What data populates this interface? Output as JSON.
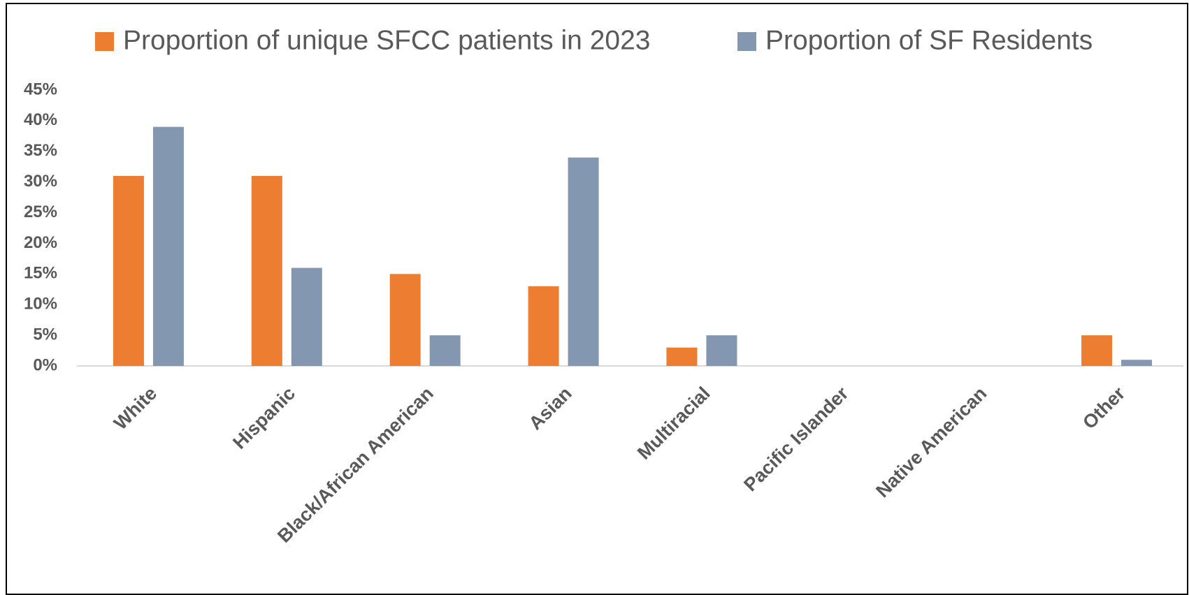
{
  "chart_data": {
    "type": "bar",
    "categories": [
      "White",
      "Hispanic",
      "Black/African American",
      "Asian",
      "Multiracial",
      "Pacific Islander",
      "Native American",
      "Other"
    ],
    "series": [
      {
        "name": "Proportion of unique SFCC patients in 2023",
        "color": "#ED7D31",
        "values": [
          31,
          31,
          15,
          13,
          3,
          0,
          0,
          5
        ]
      },
      {
        "name": "Proportion of SF Residents",
        "color": "#8497B0",
        "values": [
          39,
          16,
          5,
          34,
          5,
          0,
          0,
          1
        ]
      }
    ],
    "ylim": [
      0,
      45
    ],
    "yticks": [
      {
        "value": 0,
        "label": "0%"
      },
      {
        "value": 5,
        "label": "5%"
      },
      {
        "value": 10,
        "label": "10%"
      },
      {
        "value": 15,
        "label": "15%"
      },
      {
        "value": 20,
        "label": "20%"
      },
      {
        "value": 25,
        "label": "25%"
      },
      {
        "value": 30,
        "label": "30%"
      },
      {
        "value": 35,
        "label": "35%"
      },
      {
        "value": 40,
        "label": "40%"
      },
      {
        "value": 45,
        "label": "45%"
      }
    ],
    "legend": "top",
    "grid": false
  }
}
